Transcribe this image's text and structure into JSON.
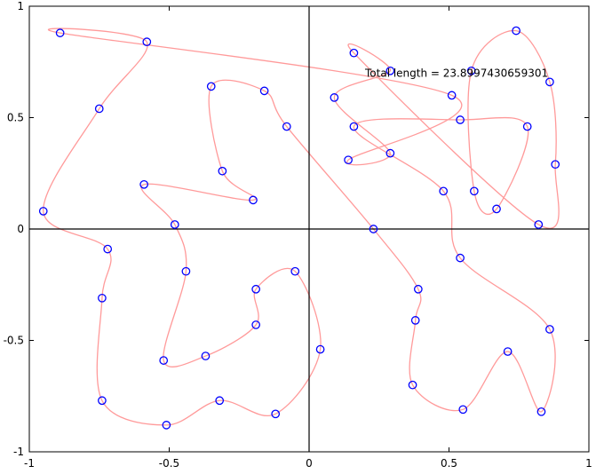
{
  "chart_data": {
    "type": "scatter",
    "title": "",
    "xlabel": "",
    "ylabel": "",
    "xlim": [
      -1,
      1
    ],
    "ylim": [
      -1,
      1
    ],
    "grid": false,
    "axis_lines_at_zero": true,
    "x_ticks": [
      -1,
      -0.5,
      0,
      0.5,
      1
    ],
    "y_ticks": [
      -1,
      -0.5,
      0,
      0.5,
      1
    ],
    "x_tick_labels": [
      "-1",
      "-0.5",
      "0",
      "0.5",
      "1"
    ],
    "y_tick_labels": [
      "-1",
      "-0.5",
      "0",
      "0.5",
      "1"
    ],
    "annotation": {
      "text": "Total length = 23.8997430659301",
      "x": 0.2,
      "y": 0.7
    },
    "marker_color": "#0000ff",
    "curve_color": "#ff9a9a",
    "points": [
      [
        -0.89,
        0.88
      ],
      [
        -0.58,
        0.84
      ],
      [
        -0.75,
        0.54
      ],
      [
        -0.95,
        0.08
      ],
      [
        -0.72,
        -0.09
      ],
      [
        -0.74,
        -0.31
      ],
      [
        -0.74,
        -0.77
      ],
      [
        -0.51,
        -0.88
      ],
      [
        -0.32,
        -0.77
      ],
      [
        -0.12,
        -0.83
      ],
      [
        0.04,
        -0.54
      ],
      [
        -0.05,
        -0.19
      ],
      [
        -0.19,
        -0.27
      ],
      [
        -0.19,
        -0.43
      ],
      [
        -0.37,
        -0.57
      ],
      [
        -0.52,
        -0.59
      ],
      [
        -0.44,
        -0.19
      ],
      [
        -0.48,
        0.02
      ],
      [
        -0.59,
        0.2
      ],
      [
        -0.2,
        0.13
      ],
      [
        -0.31,
        0.26
      ],
      [
        -0.35,
        0.64
      ],
      [
        -0.16,
        0.62
      ],
      [
        -0.08,
        0.46
      ],
      [
        0.23,
        0.0
      ],
      [
        0.39,
        -0.27
      ],
      [
        0.38,
        -0.41
      ],
      [
        0.37,
        -0.7
      ],
      [
        0.55,
        -0.81
      ],
      [
        0.71,
        -0.55
      ],
      [
        0.83,
        -0.82
      ],
      [
        0.86,
        -0.45
      ],
      [
        0.54,
        -0.13
      ],
      [
        0.48,
        0.17
      ],
      [
        0.16,
        0.46
      ],
      [
        0.54,
        0.49
      ],
      [
        0.78,
        0.46
      ],
      [
        0.67,
        0.09
      ],
      [
        0.59,
        0.17
      ],
      [
        0.58,
        0.71
      ],
      [
        0.74,
        0.89
      ],
      [
        0.86,
        0.66
      ],
      [
        0.88,
        0.29
      ],
      [
        0.82,
        0.02
      ],
      [
        0.16,
        0.79
      ],
      [
        0.29,
        0.71
      ],
      [
        0.09,
        0.59
      ],
      [
        0.29,
        0.34
      ],
      [
        0.14,
        0.31
      ],
      [
        0.51,
        0.6
      ]
    ]
  }
}
